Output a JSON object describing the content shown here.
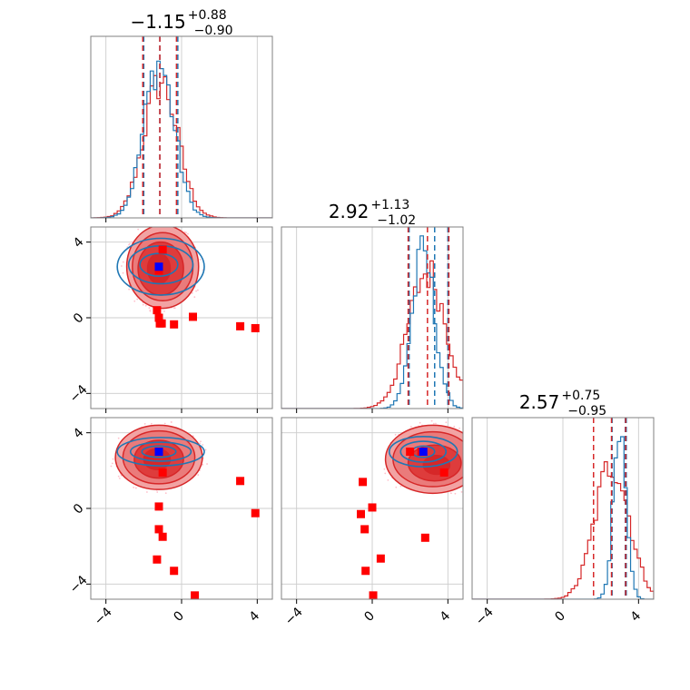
{
  "chart_data": {
    "type": "corner",
    "colors": {
      "blue": "#1f77b4",
      "red": "#d62728",
      "red_fill": "#f2a3a3",
      "marker_red": "#ff0000",
      "marker_blue": "#0000ff",
      "scatter": "#ffc0cb"
    },
    "grid": true,
    "range": [
      -4.8,
      4.8
    ],
    "ticks": [
      -4,
      0,
      4
    ],
    "tick_labels": [
      "−4",
      "0",
      "4"
    ],
    "titles": [
      {
        "center": "−1.15",
        "plus": "+0.88",
        "minus": "−0.90"
      },
      {
        "center": "2.92",
        "plus": "+1.13",
        "minus": "−1.02"
      },
      {
        "center": "2.57",
        "plus": "+0.75",
        "minus": "−0.95"
      }
    ],
    "diagonals": [
      {
        "red_quantiles": [
          -2.05,
          -1.15,
          -0.27
        ],
        "blue_quantiles": [
          -2.0,
          -1.15,
          -0.2
        ],
        "blue_hist": {
          "mean": -1.2,
          "sd": 0.8
        },
        "red_hist": {
          "mean": -1.1,
          "sd": 0.9
        }
      },
      {
        "red_quantiles": [
          1.9,
          2.92,
          4.05
        ],
        "blue_quantiles": [
          1.95,
          3.3,
          4.0
        ],
        "blue_hist": {
          "mean": 2.7,
          "sd": 0.6
        },
        "red_hist": {
          "mean": 2.9,
          "sd": 1.0
        }
      },
      {
        "red_quantiles": [
          1.62,
          2.57,
          3.32
        ],
        "blue_quantiles": [
          2.6,
          3.3,
          3.35
        ],
        "blue_hist": {
          "mean": 3.0,
          "sd": 0.35
        },
        "red_hist": {
          "mean": 2.6,
          "sd": 0.9
        }
      }
    ],
    "pairs": [
      {
        "row": 1,
        "col": 0,
        "red_contours": [
          {
            "cx": -1.0,
            "cy": 2.7,
            "rx": 1.9,
            "ry": 2.2
          },
          {
            "cx": -1.0,
            "cy": 2.7,
            "rx": 1.6,
            "ry": 1.8
          },
          {
            "cx": -1.1,
            "cy": 2.6,
            "rx": 1.2,
            "ry": 1.4
          },
          {
            "cx": -1.2,
            "cy": 2.6,
            "rx": 0.6,
            "ry": 0.8
          }
        ],
        "blue_contours": [
          {
            "cx": -1.1,
            "cy": 2.7,
            "rx": 2.3,
            "ry": 1.5
          },
          {
            "cx": -1.1,
            "cy": 2.8,
            "rx": 1.7,
            "ry": 1.0
          },
          {
            "cx": -1.2,
            "cy": 2.8,
            "rx": 1.0,
            "ry": 0.6
          }
        ],
        "red_markers": [
          [
            -1.0,
            3.6
          ],
          [
            -1.2,
            2.5
          ],
          [
            -1.3,
            0.4
          ],
          [
            -1.2,
            0.0
          ],
          [
            -1.15,
            -0.3
          ],
          [
            -1.05,
            -0.3
          ],
          [
            -0.4,
            -0.35
          ],
          [
            0.6,
            0.05
          ],
          [
            3.1,
            -0.45
          ],
          [
            3.9,
            -0.55
          ]
        ],
        "blue_marker": [
          -1.2,
          2.7
        ]
      },
      {
        "row": 2,
        "col": 0,
        "red_contours": [
          {
            "cx": -1.2,
            "cy": 2.7,
            "rx": 2.3,
            "ry": 1.7
          },
          {
            "cx": -1.2,
            "cy": 2.7,
            "rx": 1.9,
            "ry": 1.4
          },
          {
            "cx": -1.2,
            "cy": 2.6,
            "rx": 1.3,
            "ry": 1.0
          },
          {
            "cx": -1.3,
            "cy": 2.6,
            "rx": 0.7,
            "ry": 0.55
          }
        ],
        "blue_contours": [
          {
            "cx": -1.1,
            "cy": 3.0,
            "rx": 2.3,
            "ry": 0.75
          },
          {
            "cx": -1.1,
            "cy": 3.0,
            "rx": 1.6,
            "ry": 0.5
          },
          {
            "cx": -1.2,
            "cy": 3.0,
            "rx": 0.9,
            "ry": 0.3
          }
        ],
        "red_markers": [
          [
            -1.0,
            1.9
          ],
          [
            -1.2,
            0.1
          ],
          [
            -1.2,
            -1.1
          ],
          [
            -1.0,
            -1.5
          ],
          [
            -1.3,
            -2.7
          ],
          [
            -0.4,
            -3.3
          ],
          [
            0.7,
            -4.6
          ],
          [
            3.1,
            1.45
          ],
          [
            3.9,
            -0.25
          ]
        ],
        "blue_marker": [
          -1.2,
          3.0
        ]
      },
      {
        "row": 2,
        "col": 1,
        "red_contours": [
          {
            "cx": 3.2,
            "cy": 2.6,
            "rx": 2.5,
            "ry": 1.8
          },
          {
            "cx": 3.2,
            "cy": 2.6,
            "rx": 2.1,
            "ry": 1.45
          },
          {
            "cx": 3.3,
            "cy": 2.4,
            "rx": 1.4,
            "ry": 0.95
          },
          {
            "cx": 3.4,
            "cy": 2.3,
            "rx": 0.7,
            "ry": 0.5
          }
        ],
        "blue_contours": [
          {
            "cx": 2.7,
            "cy": 3.0,
            "rx": 1.8,
            "ry": 0.8
          },
          {
            "cx": 2.7,
            "cy": 3.0,
            "rx": 1.2,
            "ry": 0.55
          },
          {
            "cx": 2.7,
            "cy": 3.0,
            "rx": 0.6,
            "ry": 0.3
          }
        ],
        "red_markers": [
          [
            2.0,
            3.0
          ],
          [
            2.6,
            3.0
          ],
          [
            3.8,
            1.9
          ],
          [
            -0.5,
            1.4
          ],
          [
            0.0,
            0.05
          ],
          [
            -0.6,
            -0.3
          ],
          [
            -0.4,
            -1.1
          ],
          [
            2.8,
            -1.55
          ],
          [
            0.45,
            -2.65
          ],
          [
            -0.35,
            -3.3
          ],
          [
            0.05,
            -4.6
          ]
        ],
        "blue_marker": [
          2.7,
          3.0
        ]
      }
    ]
  }
}
